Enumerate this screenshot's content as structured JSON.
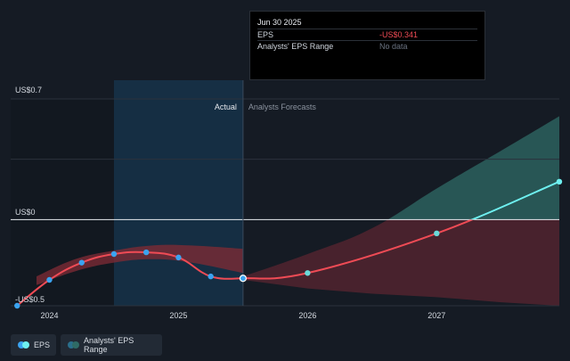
{
  "tooltip": {
    "date": "Jun 30 2025",
    "rows": [
      {
        "label": "EPS",
        "value": "-US$0.341"
      },
      {
        "label": "Analysts' EPS Range",
        "value": "No data"
      }
    ]
  },
  "legend": {
    "eps_label": "EPS",
    "range_label": "Analysts' EPS Range"
  },
  "colors": {
    "background": "#151b24",
    "actual_line": "#ef4b55",
    "forecast_positive": "#6ef0f0",
    "range_positive": "#2f6b66",
    "range_negative": "#5a2630",
    "dot": "#3ba3f0",
    "highlight_band": "#16324a"
  },
  "chart_data": {
    "type": "line",
    "ylim": [
      -0.5,
      0.7
    ],
    "y_ticks": [
      {
        "value": 0.7,
        "label": "US$0.7"
      },
      {
        "value": 0,
        "label": "US$0"
      },
      {
        "value": -0.5,
        "label": "-US$0.5"
      }
    ],
    "x_ticks": [
      "2024",
      "2025",
      "2026",
      "2027"
    ],
    "xlim": [
      2023.7,
      2027.95
    ],
    "regions": {
      "actual_label": "Actual",
      "forecast_label": "Analysts Forecasts",
      "split_x": 2025.5
    },
    "highlight_range": [
      2024.5,
      2025.5
    ],
    "series": [
      {
        "name": "EPS",
        "x": [
          2023.75,
          2024.0,
          2024.25,
          2024.5,
          2024.75,
          2025.0,
          2025.25,
          2025.5
        ],
        "y": [
          -0.5,
          -0.35,
          -0.25,
          -0.2,
          -0.19,
          -0.22,
          -0.33,
          -0.341
        ]
      },
      {
        "name": "Forecast",
        "x": [
          2025.5,
          2026.0,
          2027.0,
          2027.95
        ],
        "y": [
          -0.341,
          -0.31,
          -0.08,
          0.22
        ]
      }
    ],
    "actual_band": {
      "x": [
        2023.9,
        2024.2,
        2024.5,
        2024.8,
        2025.1,
        2025.5
      ],
      "upper": [
        -0.33,
        -0.23,
        -0.18,
        -0.15,
        -0.15,
        -0.17
      ],
      "lower": [
        -0.38,
        -0.3,
        -0.25,
        -0.23,
        -0.25,
        -0.31
      ]
    },
    "range_band": {
      "x": [
        2025.5,
        2026.0,
        2026.5,
        2027.0,
        2027.5,
        2027.95
      ],
      "upper": [
        -0.33,
        -0.2,
        -0.05,
        0.18,
        0.4,
        0.6
      ],
      "lower": [
        -0.35,
        -0.4,
        -0.43,
        -0.45,
        -0.48,
        -0.5
      ]
    }
  }
}
